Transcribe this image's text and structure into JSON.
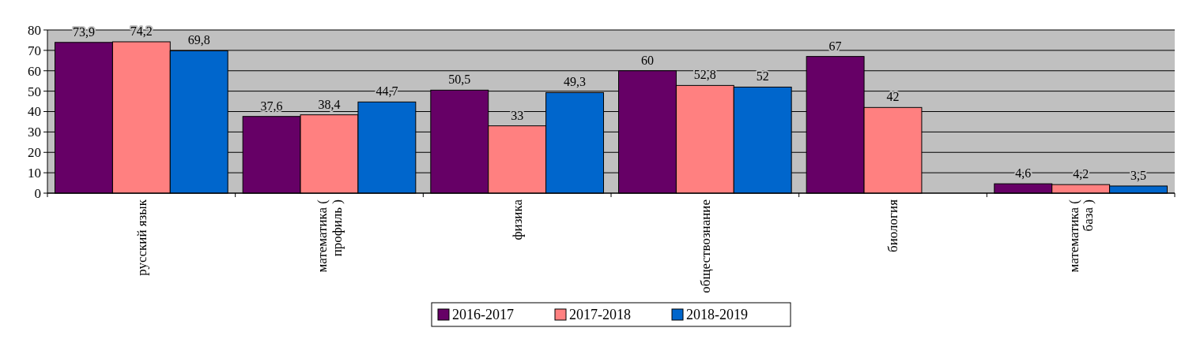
{
  "chart_data": {
    "type": "bar",
    "categories": [
      "русский язык",
      "математика ( профиль )",
      "физика",
      "обществознание",
      "биология",
      "математика ( база )"
    ],
    "series": [
      {
        "name": "2016-2017",
        "color": "#660066",
        "values": [
          73.9,
          37.6,
          50.5,
          60,
          67,
          4.6
        ],
        "value_labels": [
          "73,9",
          "37,6",
          "50,5",
          "60",
          "67",
          "4,6"
        ]
      },
      {
        "name": "2017-2018",
        "color": "#ff8080",
        "values": [
          74.2,
          38.4,
          33,
          52.8,
          42,
          4.2
        ],
        "value_labels": [
          "74,2",
          "38,4",
          "33",
          "52,8",
          "42",
          "4,2"
        ]
      },
      {
        "name": "2018-2019",
        "color": "#0066cc",
        "values": [
          69.8,
          44.7,
          49.3,
          52,
          null,
          3.5
        ],
        "value_labels": [
          "69,8",
          "44,7",
          "49,3",
          "52",
          null,
          "3,5"
        ]
      }
    ],
    "ylim": [
      0,
      80
    ],
    "yticks": [
      0,
      10,
      20,
      30,
      40,
      50,
      60,
      70,
      80
    ],
    "grid": "y",
    "legend": "bottom"
  }
}
